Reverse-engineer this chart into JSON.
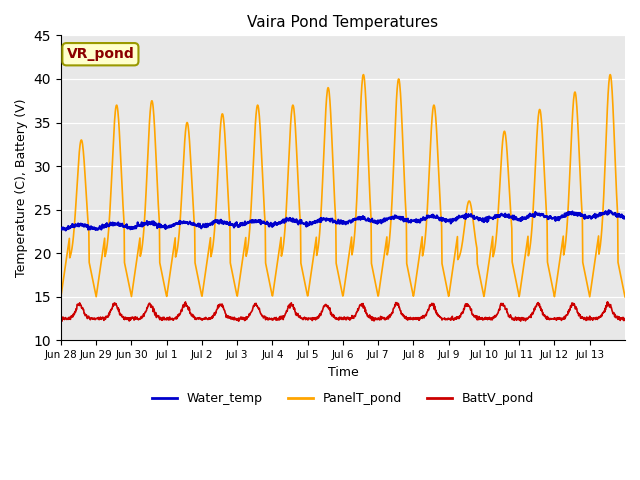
{
  "title": "Vaira Pond Temperatures",
  "xlabel": "Time",
  "ylabel": "Temperature (C), Battery (V)",
  "ylim": [
    10,
    45
  ],
  "yticks": [
    10,
    15,
    20,
    25,
    30,
    35,
    40,
    45
  ],
  "annotation_text": "VR_pond",
  "annotation_color": "#8B0000",
  "annotation_bg": "#FFFFCC",
  "annotation_edge": "#999900",
  "bg_color": "#E8E8E8",
  "water_color": "#0000CC",
  "panel_color": "#FFA500",
  "batt_color": "#CC0000",
  "legend_labels": [
    "Water_temp",
    "PanelT_pond",
    "BattV_pond"
  ],
  "num_days": 16,
  "x_tick_labels": [
    "Jun 28",
    "Jun 29",
    "Jun 30",
    "Jul 1",
    "Jul 2",
    "Jul 3",
    "Jul 4",
    "Jul 5",
    "Jul 6",
    "Jul 7",
    "Jul 8",
    "Jul 9",
    "Jul 10",
    "Jul 11",
    "Jul 12",
    "Jul 13"
  ],
  "x_tick_positions": [
    0,
    1,
    2,
    3,
    4,
    5,
    6,
    7,
    8,
    9,
    10,
    11,
    12,
    13,
    14,
    15
  ]
}
